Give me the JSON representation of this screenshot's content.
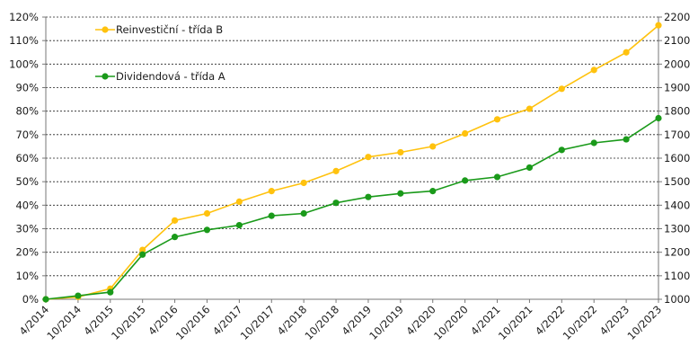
{
  "chart_data": {
    "type": "line",
    "categories": [
      "4/2014",
      "10/2014",
      "4/2015",
      "10/2015",
      "4/2016",
      "10/2016",
      "4/2017",
      "10/2017",
      "4/2018",
      "10/2018",
      "4/2019",
      "10/2019",
      "4/2020",
      "10/2020",
      "4/2021",
      "10/2021",
      "4/2022",
      "10/2022",
      "4/2023",
      "10/2023"
    ],
    "series": [
      {
        "name": "Reinvestiční - třída B",
        "color": "#FFC20E",
        "values": [
          0,
          1,
          4.5,
          21,
          33.5,
          36.5,
          41.5,
          46,
          49.5,
          54.5,
          60.5,
          62.5,
          65,
          70.5,
          76.5,
          81,
          89.5,
          97.5,
          105,
          116.5
        ]
      },
      {
        "name": "Dividendová - třída A",
        "color": "#1A9A1A",
        "values": [
          0,
          1.5,
          3,
          19,
          26.5,
          29.5,
          31.5,
          35.5,
          36.5,
          41,
          43.5,
          45,
          46,
          50.5,
          52,
          56,
          63.5,
          66.5,
          68,
          77
        ]
      }
    ],
    "y_left": {
      "ticks": [
        "0%",
        "10%",
        "20%",
        "30%",
        "40%",
        "50%",
        "60%",
        "70%",
        "80%",
        "90%",
        "100%",
        "110%",
        "120%"
      ],
      "range": [
        0,
        120
      ]
    },
    "y_right": {
      "ticks": [
        "1000",
        "1100",
        "1200",
        "1300",
        "1400",
        "1500",
        "1600",
        "1700",
        "1800",
        "1900",
        "2000",
        "2100",
        "2200"
      ],
      "range": [
        1000,
        2200
      ]
    },
    "grid": true,
    "legend_position": "top-left"
  }
}
